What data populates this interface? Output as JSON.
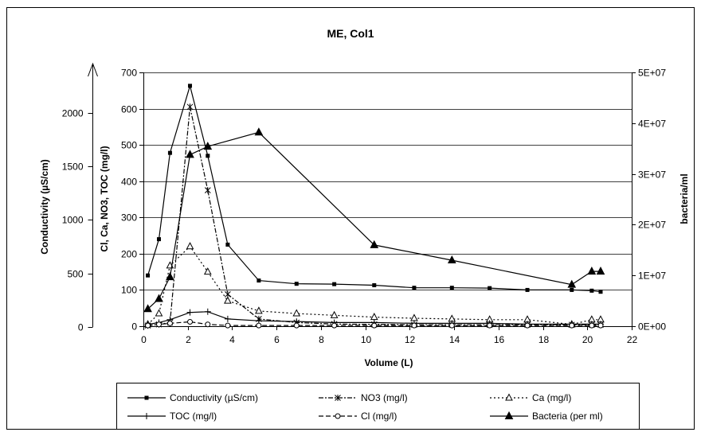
{
  "chart_data": {
    "type": "line",
    "title": "ME, Col1",
    "xlabel": "Volume (L)",
    "xlim": [
      0,
      22
    ],
    "x_ticks": [
      "0",
      "2",
      "4",
      "6",
      "8",
      "10",
      "12",
      "14",
      "16",
      "18",
      "20",
      "22"
    ],
    "y_left_label": "Cl, Ca, NO3, TOC (mg/l)",
    "y_left_lim": [
      0,
      700
    ],
    "y_left_ticks": [
      "0",
      "100",
      "200",
      "300",
      "400",
      "500",
      "600",
      "700"
    ],
    "y_cond_label": "Conductivity (µS/cm)",
    "y_cond_lim": [
      0,
      2400
    ],
    "y_cond_ticks": [
      "0",
      "500",
      "1000",
      "1500",
      "2000"
    ],
    "y_right_label": "bacteria/ml",
    "y_right_lim": [
      0,
      50000000
    ],
    "y_right_ticks": [
      "0E+00",
      "1E+07",
      "2E+07",
      "3E+07",
      "4E+07",
      "5E+07"
    ],
    "grid": true,
    "legend_position": "bottom",
    "series": [
      {
        "name": "Conductivity (µS/cm)",
        "axis": "left",
        "marker": "square",
        "dash": "solid",
        "x": [
          0.2,
          0.7,
          1.2,
          2.1,
          2.9,
          3.8,
          5.2,
          6.9,
          8.6,
          10.4,
          12.2,
          13.9,
          15.6,
          17.3,
          19.3,
          20.2,
          20.6
        ],
        "y": [
          140,
          240,
          478,
          663,
          470,
          225,
          126,
          117,
          116,
          113,
          106,
          106,
          105,
          100,
          100,
          98,
          95
        ]
      },
      {
        "name": "NO3 (mg/l)",
        "axis": "left",
        "marker": "asterisk",
        "dash": "dashdot",
        "x": [
          0.2,
          0.7,
          1.2,
          2.1,
          2.9,
          3.8,
          5.2,
          6.9,
          8.6,
          10.4,
          12.2,
          13.9,
          15.6,
          17.3,
          19.3,
          20.2,
          20.6
        ],
        "y": [
          2,
          5,
          10,
          605,
          375,
          88,
          20,
          10,
          6,
          5,
          4,
          4,
          4,
          4,
          4,
          4,
          4
        ]
      },
      {
        "name": "Ca (mg/l)",
        "axis": "left",
        "marker": "triangle-open",
        "dash": "dotted",
        "x": [
          0.2,
          0.7,
          1.2,
          2.1,
          2.9,
          3.8,
          5.2,
          6.9,
          8.6,
          10.4,
          12.2,
          13.9,
          15.6,
          17.3,
          19.3,
          20.2,
          20.6
        ],
        "y": [
          5,
          35,
          167,
          220,
          150,
          70,
          42,
          35,
          30,
          25,
          22,
          20,
          18,
          18,
          5,
          18,
          18
        ]
      },
      {
        "name": "TOC (mg/l)",
        "axis": "left",
        "marker": "plus",
        "dash": "solid",
        "x": [
          0.2,
          0.7,
          1.2,
          2.1,
          2.9,
          3.8,
          5.2,
          6.9,
          8.6,
          10.4,
          12.2,
          13.9,
          15.6,
          17.3,
          19.3,
          20.2,
          20.6
        ],
        "y": [
          5,
          10,
          18,
          38,
          40,
          20,
          15,
          13,
          10,
          10,
          8,
          8,
          8,
          6,
          6,
          6,
          6
        ]
      },
      {
        "name": "Cl (mg/l)",
        "axis": "left",
        "marker": "circle-open",
        "dash": "dashed",
        "x": [
          0.2,
          0.7,
          1.2,
          2.1,
          2.9,
          3.8,
          5.2,
          6.9,
          8.6,
          10.4,
          12.2,
          13.9,
          15.6,
          17.3,
          19.3,
          20.2,
          20.6
        ],
        "y": [
          2,
          5,
          8,
          12,
          5,
          2,
          2,
          2,
          2,
          2,
          2,
          2,
          2,
          2,
          2,
          2,
          2
        ]
      },
      {
        "name": "Bacteria (per ml)",
        "axis": "right",
        "marker": "triangle-filled",
        "dash": "solid",
        "x": [
          0.2,
          0.7,
          1.2,
          2.1,
          2.9,
          5.2,
          10.4,
          13.9,
          19.3,
          20.2,
          20.6
        ],
        "y": [
          3400000,
          5400000,
          9700000,
          33800000,
          35400000,
          38200000,
          16000000,
          13000000,
          8200000,
          10800000,
          10800000
        ]
      }
    ]
  }
}
